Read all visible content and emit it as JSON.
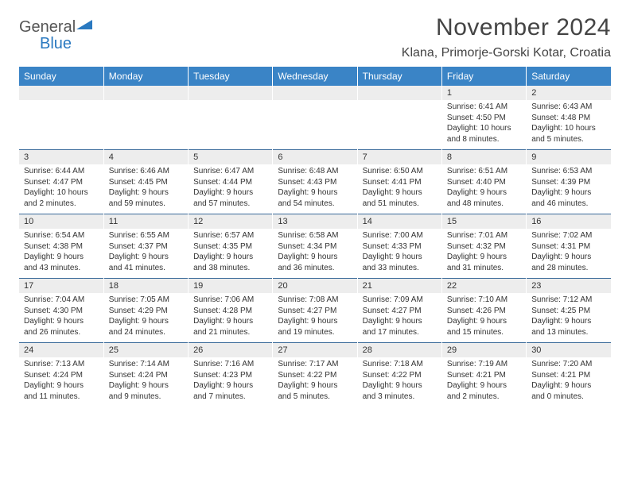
{
  "brand": {
    "name_gray": "General",
    "name_blue": "Blue"
  },
  "title": "November 2024",
  "location": "Klana, Primorje-Gorski Kotar, Croatia",
  "colors": {
    "header_bg": "#3a84c6",
    "header_text": "#ffffff",
    "daynum_bg": "#ededed",
    "border_top": "#3a6a9a",
    "text": "#333333",
    "logo_gray": "#555555",
    "logo_blue": "#2a79c0"
  },
  "weekdays": [
    "Sunday",
    "Monday",
    "Tuesday",
    "Wednesday",
    "Thursday",
    "Friday",
    "Saturday"
  ],
  "weeks": [
    [
      null,
      null,
      null,
      null,
      null,
      {
        "n": "1",
        "rise": "Sunrise: 6:41 AM",
        "set": "Sunset: 4:50 PM",
        "dl": "Daylight: 10 hours and 8 minutes."
      },
      {
        "n": "2",
        "rise": "Sunrise: 6:43 AM",
        "set": "Sunset: 4:48 PM",
        "dl": "Daylight: 10 hours and 5 minutes."
      }
    ],
    [
      {
        "n": "3",
        "rise": "Sunrise: 6:44 AM",
        "set": "Sunset: 4:47 PM",
        "dl": "Daylight: 10 hours and 2 minutes."
      },
      {
        "n": "4",
        "rise": "Sunrise: 6:46 AM",
        "set": "Sunset: 4:45 PM",
        "dl": "Daylight: 9 hours and 59 minutes."
      },
      {
        "n": "5",
        "rise": "Sunrise: 6:47 AM",
        "set": "Sunset: 4:44 PM",
        "dl": "Daylight: 9 hours and 57 minutes."
      },
      {
        "n": "6",
        "rise": "Sunrise: 6:48 AM",
        "set": "Sunset: 4:43 PM",
        "dl": "Daylight: 9 hours and 54 minutes."
      },
      {
        "n": "7",
        "rise": "Sunrise: 6:50 AM",
        "set": "Sunset: 4:41 PM",
        "dl": "Daylight: 9 hours and 51 minutes."
      },
      {
        "n": "8",
        "rise": "Sunrise: 6:51 AM",
        "set": "Sunset: 4:40 PM",
        "dl": "Daylight: 9 hours and 48 minutes."
      },
      {
        "n": "9",
        "rise": "Sunrise: 6:53 AM",
        "set": "Sunset: 4:39 PM",
        "dl": "Daylight: 9 hours and 46 minutes."
      }
    ],
    [
      {
        "n": "10",
        "rise": "Sunrise: 6:54 AM",
        "set": "Sunset: 4:38 PM",
        "dl": "Daylight: 9 hours and 43 minutes."
      },
      {
        "n": "11",
        "rise": "Sunrise: 6:55 AM",
        "set": "Sunset: 4:37 PM",
        "dl": "Daylight: 9 hours and 41 minutes."
      },
      {
        "n": "12",
        "rise": "Sunrise: 6:57 AM",
        "set": "Sunset: 4:35 PM",
        "dl": "Daylight: 9 hours and 38 minutes."
      },
      {
        "n": "13",
        "rise": "Sunrise: 6:58 AM",
        "set": "Sunset: 4:34 PM",
        "dl": "Daylight: 9 hours and 36 minutes."
      },
      {
        "n": "14",
        "rise": "Sunrise: 7:00 AM",
        "set": "Sunset: 4:33 PM",
        "dl": "Daylight: 9 hours and 33 minutes."
      },
      {
        "n": "15",
        "rise": "Sunrise: 7:01 AM",
        "set": "Sunset: 4:32 PM",
        "dl": "Daylight: 9 hours and 31 minutes."
      },
      {
        "n": "16",
        "rise": "Sunrise: 7:02 AM",
        "set": "Sunset: 4:31 PM",
        "dl": "Daylight: 9 hours and 28 minutes."
      }
    ],
    [
      {
        "n": "17",
        "rise": "Sunrise: 7:04 AM",
        "set": "Sunset: 4:30 PM",
        "dl": "Daylight: 9 hours and 26 minutes."
      },
      {
        "n": "18",
        "rise": "Sunrise: 7:05 AM",
        "set": "Sunset: 4:29 PM",
        "dl": "Daylight: 9 hours and 24 minutes."
      },
      {
        "n": "19",
        "rise": "Sunrise: 7:06 AM",
        "set": "Sunset: 4:28 PM",
        "dl": "Daylight: 9 hours and 21 minutes."
      },
      {
        "n": "20",
        "rise": "Sunrise: 7:08 AM",
        "set": "Sunset: 4:27 PM",
        "dl": "Daylight: 9 hours and 19 minutes."
      },
      {
        "n": "21",
        "rise": "Sunrise: 7:09 AM",
        "set": "Sunset: 4:27 PM",
        "dl": "Daylight: 9 hours and 17 minutes."
      },
      {
        "n": "22",
        "rise": "Sunrise: 7:10 AM",
        "set": "Sunset: 4:26 PM",
        "dl": "Daylight: 9 hours and 15 minutes."
      },
      {
        "n": "23",
        "rise": "Sunrise: 7:12 AM",
        "set": "Sunset: 4:25 PM",
        "dl": "Daylight: 9 hours and 13 minutes."
      }
    ],
    [
      {
        "n": "24",
        "rise": "Sunrise: 7:13 AM",
        "set": "Sunset: 4:24 PM",
        "dl": "Daylight: 9 hours and 11 minutes."
      },
      {
        "n": "25",
        "rise": "Sunrise: 7:14 AM",
        "set": "Sunset: 4:24 PM",
        "dl": "Daylight: 9 hours and 9 minutes."
      },
      {
        "n": "26",
        "rise": "Sunrise: 7:16 AM",
        "set": "Sunset: 4:23 PM",
        "dl": "Daylight: 9 hours and 7 minutes."
      },
      {
        "n": "27",
        "rise": "Sunrise: 7:17 AM",
        "set": "Sunset: 4:22 PM",
        "dl": "Daylight: 9 hours and 5 minutes."
      },
      {
        "n": "28",
        "rise": "Sunrise: 7:18 AM",
        "set": "Sunset: 4:22 PM",
        "dl": "Daylight: 9 hours and 3 minutes."
      },
      {
        "n": "29",
        "rise": "Sunrise: 7:19 AM",
        "set": "Sunset: 4:21 PM",
        "dl": "Daylight: 9 hours and 2 minutes."
      },
      {
        "n": "30",
        "rise": "Sunrise: 7:20 AM",
        "set": "Sunset: 4:21 PM",
        "dl": "Daylight: 9 hours and 0 minutes."
      }
    ]
  ]
}
